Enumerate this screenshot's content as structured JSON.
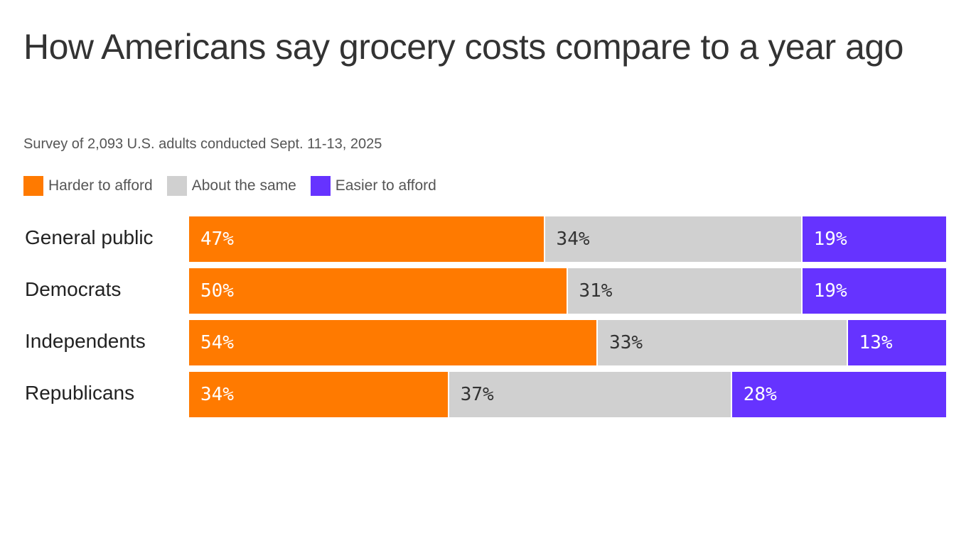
{
  "chart_data": {
    "type": "bar",
    "orientation": "horizontal",
    "stacked": true,
    "title": "How Americans say grocery costs compare to a year ago",
    "subtitle": "Survey of 2,093 U.S. adults conducted Sept. 11-13, 2025",
    "categories": [
      "General public",
      "Democrats",
      "Independents",
      "Republicans"
    ],
    "series": [
      {
        "name": "Harder to afford",
        "color": "#FF7A00",
        "label_color": "#FFFFFF",
        "values": [
          47,
          50,
          54,
          34
        ]
      },
      {
        "name": "About the same",
        "color": "#D0D0D0",
        "label_color": "#333333",
        "values": [
          34,
          31,
          33,
          37
        ]
      },
      {
        "name": "Easier to afford",
        "color": "#6633FF",
        "label_color": "#FFFFFF",
        "values": [
          19,
          19,
          13,
          28
        ]
      }
    ],
    "value_suffix": "%",
    "legend_position": "top-left",
    "grid": false
  }
}
